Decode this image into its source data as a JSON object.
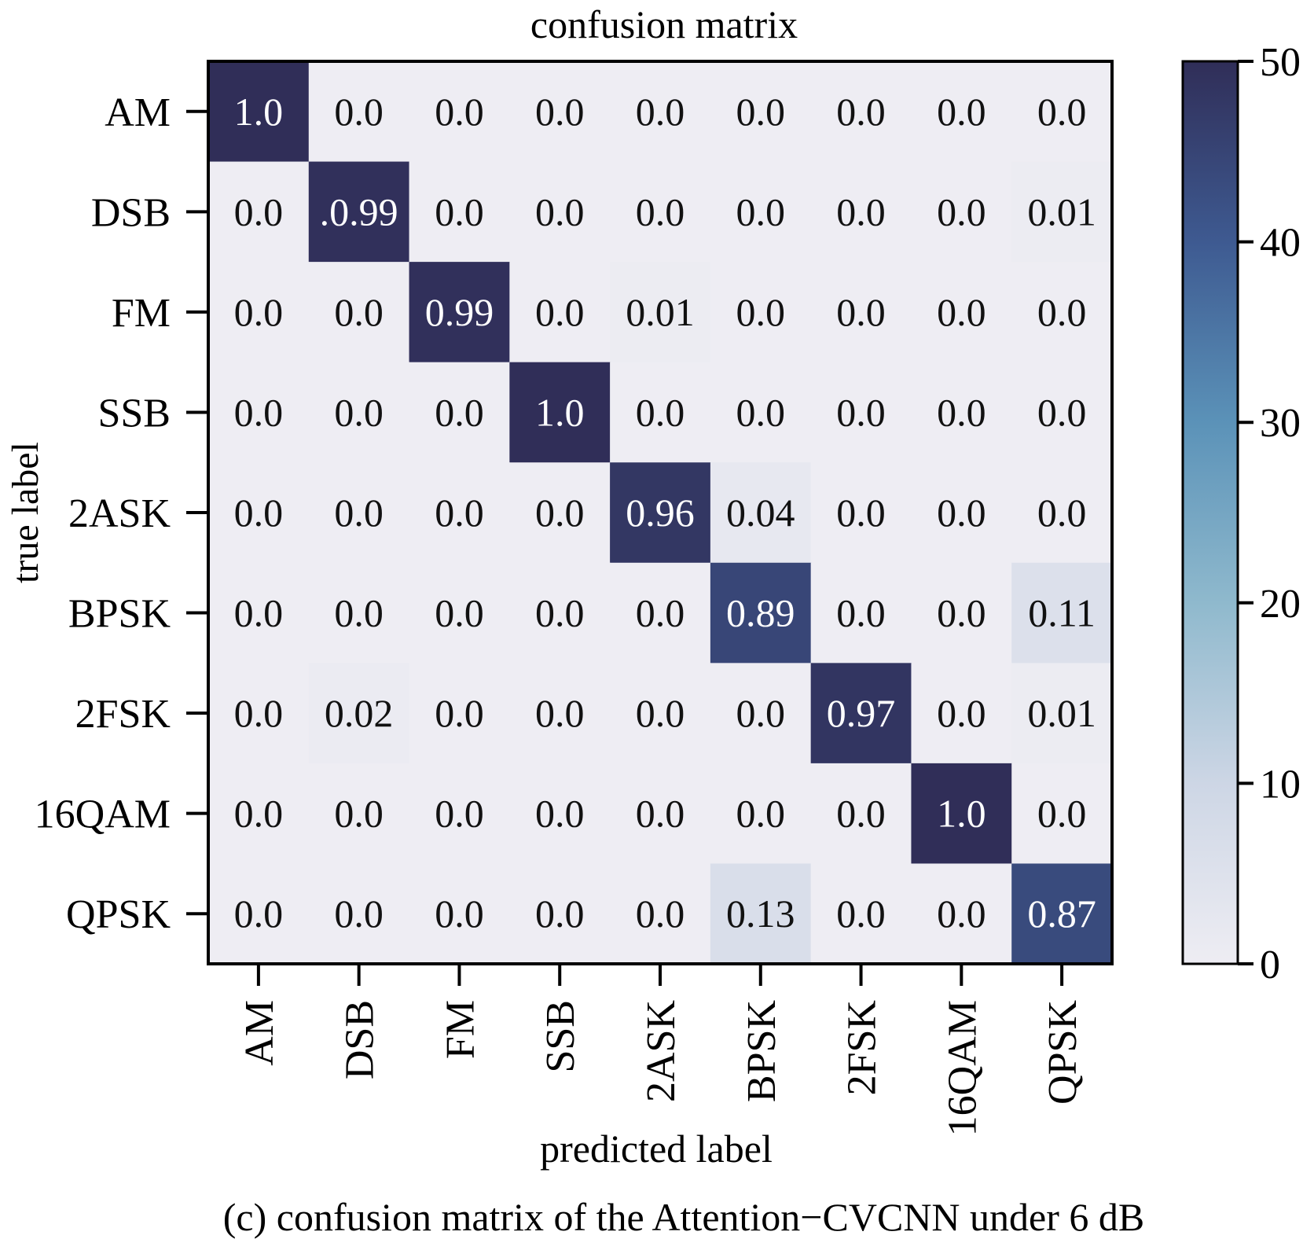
{
  "chart_data": {
    "type": "heatmap",
    "title": "confusion matrix",
    "xlabel": "predicted label",
    "ylabel": "true label",
    "caption": "(c) confusion matrix of the Attention−CVCNN under 6 dB",
    "categories": [
      "AM",
      "DSB",
      "FM",
      "SSB",
      "2ASK",
      "BPSK",
      "2FSK",
      "16QAM",
      "QPSK"
    ],
    "cell_labels": [
      [
        "1.0",
        "0.0",
        "0.0",
        "0.0",
        "0.0",
        "0.0",
        "0.0",
        "0.0",
        "0.0"
      ],
      [
        "0.0",
        ".0.99",
        "0.0",
        "0.0",
        "0.0",
        "0.0",
        "0.0",
        "0.0",
        "0.01"
      ],
      [
        "0.0",
        "0.0",
        "0.99",
        "0.0",
        "0.01",
        "0.0",
        "0.0",
        "0.0",
        "0.0"
      ],
      [
        "0.0",
        "0.0",
        "0.0",
        "1.0",
        "0.0",
        "0.0",
        "0.0",
        "0.0",
        "0.0"
      ],
      [
        "0.0",
        "0.0",
        "0.0",
        "0.0",
        "0.96",
        "0.04",
        "0.0",
        "0.0",
        "0.0"
      ],
      [
        "0.0",
        "0.0",
        "0.0",
        "0.0",
        "0.0",
        "0.89",
        "0.0",
        "0.0",
        "0.11"
      ],
      [
        "0.0",
        "0.02",
        "0.0",
        "0.0",
        "0.0",
        "0.0",
        "0.97",
        "0.0",
        "0.01"
      ],
      [
        "0.0",
        "0.0",
        "0.0",
        "0.0",
        "0.0",
        "0.0",
        "0.0",
        "1.0",
        "0.0"
      ],
      [
        "0.0",
        "0.0",
        "0.0",
        "0.0",
        "0.0",
        "0.13",
        "0.0",
        "0.0",
        "0.87"
      ]
    ],
    "values": [
      [
        1.0,
        0.0,
        0.0,
        0.0,
        0.0,
        0.0,
        0.0,
        0.0,
        0.0
      ],
      [
        0.0,
        0.99,
        0.0,
        0.0,
        0.0,
        0.0,
        0.0,
        0.0,
        0.01
      ],
      [
        0.0,
        0.0,
        0.99,
        0.0,
        0.01,
        0.0,
        0.0,
        0.0,
        0.0
      ],
      [
        0.0,
        0.0,
        0.0,
        1.0,
        0.0,
        0.0,
        0.0,
        0.0,
        0.0
      ],
      [
        0.0,
        0.0,
        0.0,
        0.0,
        0.96,
        0.04,
        0.0,
        0.0,
        0.0
      ],
      [
        0.0,
        0.0,
        0.0,
        0.0,
        0.0,
        0.89,
        0.0,
        0.0,
        0.11
      ],
      [
        0.0,
        0.02,
        0.0,
        0.0,
        0.0,
        0.0,
        0.97,
        0.0,
        0.01
      ],
      [
        0.0,
        0.0,
        0.0,
        0.0,
        0.0,
        0.0,
        0.0,
        1.0,
        0.0
      ],
      [
        0.0,
        0.0,
        0.0,
        0.0,
        0.0,
        0.13,
        0.0,
        0.0,
        0.87
      ]
    ],
    "colorbar": {
      "range": [
        0,
        50
      ],
      "ticks": [
        0,
        10,
        20,
        30,
        40,
        50
      ],
      "colors": [
        "#eeedf3",
        "#cdd6e5",
        "#8fb9cd",
        "#5b92b8",
        "#3e5a91",
        "#302e58"
      ]
    },
    "grid": false
  }
}
